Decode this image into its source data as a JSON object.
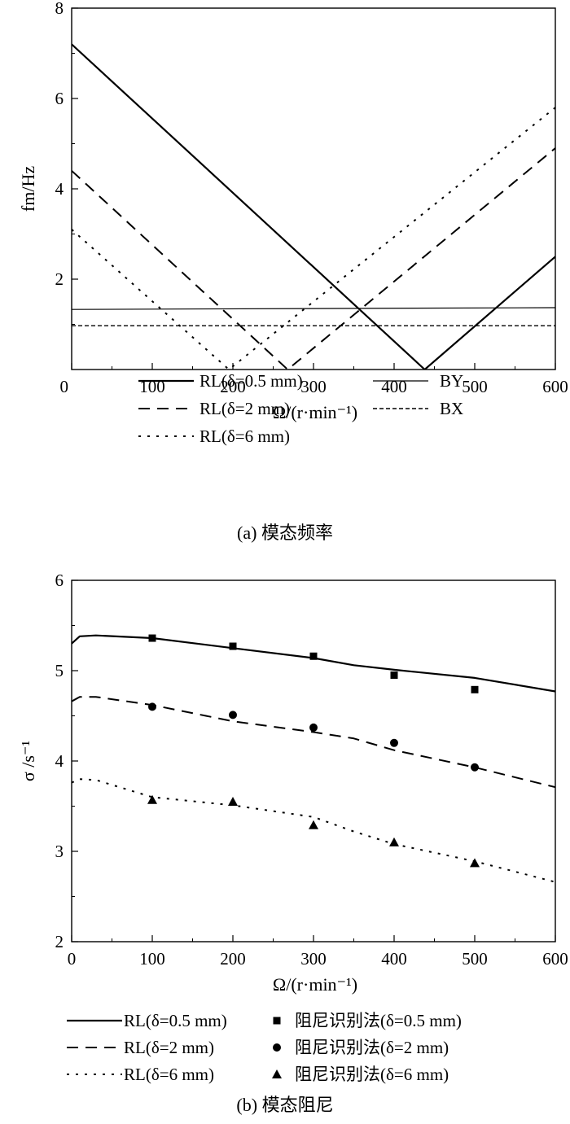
{
  "charts": [
    {
      "id": "a",
      "type": "line",
      "caption": "(a) 模态频率",
      "xlabel": "Ω/(r·min⁻¹)",
      "ylabel": "fm/Hz",
      "xlim": [
        0,
        600
      ],
      "ylim": [
        0,
        8
      ],
      "xticks": [
        "0",
        "100",
        "200",
        "300",
        "400",
        "500",
        "600"
      ],
      "yticks": [
        "2",
        "4",
        "6",
        "8"
      ],
      "series": [
        {
          "name": "RL(δ=0.5 mm)",
          "style": "solid-thick",
          "x": [
            0,
            438,
            600
          ],
          "y": [
            7.2,
            0,
            2.5
          ]
        },
        {
          "name": "RL(δ=2 mm)",
          "style": "dashed",
          "x": [
            0,
            268,
            600
          ],
          "y": [
            4.4,
            0,
            4.9
          ]
        },
        {
          "name": "RL(δ=6 mm)",
          "style": "dotted",
          "x": [
            0,
            195,
            600
          ],
          "y": [
            3.1,
            0,
            5.8
          ]
        },
        {
          "name": "BY",
          "style": "solid-thin",
          "x": [
            0,
            600
          ],
          "y": [
            1.33,
            1.37
          ]
        },
        {
          "name": "BX",
          "style": "short-dash",
          "x": [
            0,
            600
          ],
          "y": [
            0.97,
            0.97
          ]
        }
      ]
    },
    {
      "id": "b",
      "type": "line",
      "caption": "(b) 模态阻尼",
      "xlabel": "Ω/(r·min⁻¹)",
      "ylabel": "σ /s⁻¹",
      "xlim": [
        0,
        600
      ],
      "ylim": [
        2,
        6
      ],
      "xticks": [
        "0",
        "100",
        "200",
        "300",
        "400",
        "500",
        "600"
      ],
      "yticks": [
        "2",
        "3",
        "4",
        "5",
        "6"
      ],
      "series": [
        {
          "name": "RL(δ=0.5 mm)",
          "style": "solid-thick",
          "x": [
            0,
            10,
            30,
            100,
            200,
            300,
            350,
            400,
            500,
            600
          ],
          "y": [
            5.3,
            5.38,
            5.39,
            5.36,
            5.25,
            5.14,
            5.06,
            5.01,
            4.92,
            4.77
          ]
        },
        {
          "name": "RL(δ=2 mm)",
          "style": "dashed",
          "x": [
            0,
            10,
            30,
            100,
            200,
            300,
            350,
            400,
            500,
            600
          ],
          "y": [
            4.66,
            4.71,
            4.71,
            4.62,
            4.44,
            4.32,
            4.25,
            4.12,
            3.93,
            3.71
          ]
        },
        {
          "name": "RL(δ=6 mm)",
          "style": "dotted",
          "x": [
            0,
            10,
            30,
            100,
            200,
            300,
            350,
            400,
            500,
            600
          ],
          "y": [
            3.76,
            3.8,
            3.79,
            3.6,
            3.51,
            3.38,
            3.22,
            3.08,
            2.89,
            2.66
          ]
        },
        {
          "name": "阻尼识别法(δ=0.5 mm)",
          "marker": "square",
          "x": [
            100,
            200,
            300,
            400,
            500
          ],
          "y": [
            5.36,
            5.27,
            5.16,
            4.95,
            4.79
          ]
        },
        {
          "name": "阻尼识别法(δ=2 mm)",
          "marker": "circle",
          "x": [
            100,
            200,
            300,
            400,
            500
          ],
          "y": [
            4.6,
            4.51,
            4.37,
            4.2,
            3.93
          ]
        },
        {
          "name": "阻尼识别法(δ=6 mm)",
          "marker": "triangle",
          "x": [
            100,
            200,
            300,
            400,
            500
          ],
          "y": [
            3.57,
            3.55,
            3.29,
            3.1,
            2.87
          ]
        }
      ]
    }
  ]
}
